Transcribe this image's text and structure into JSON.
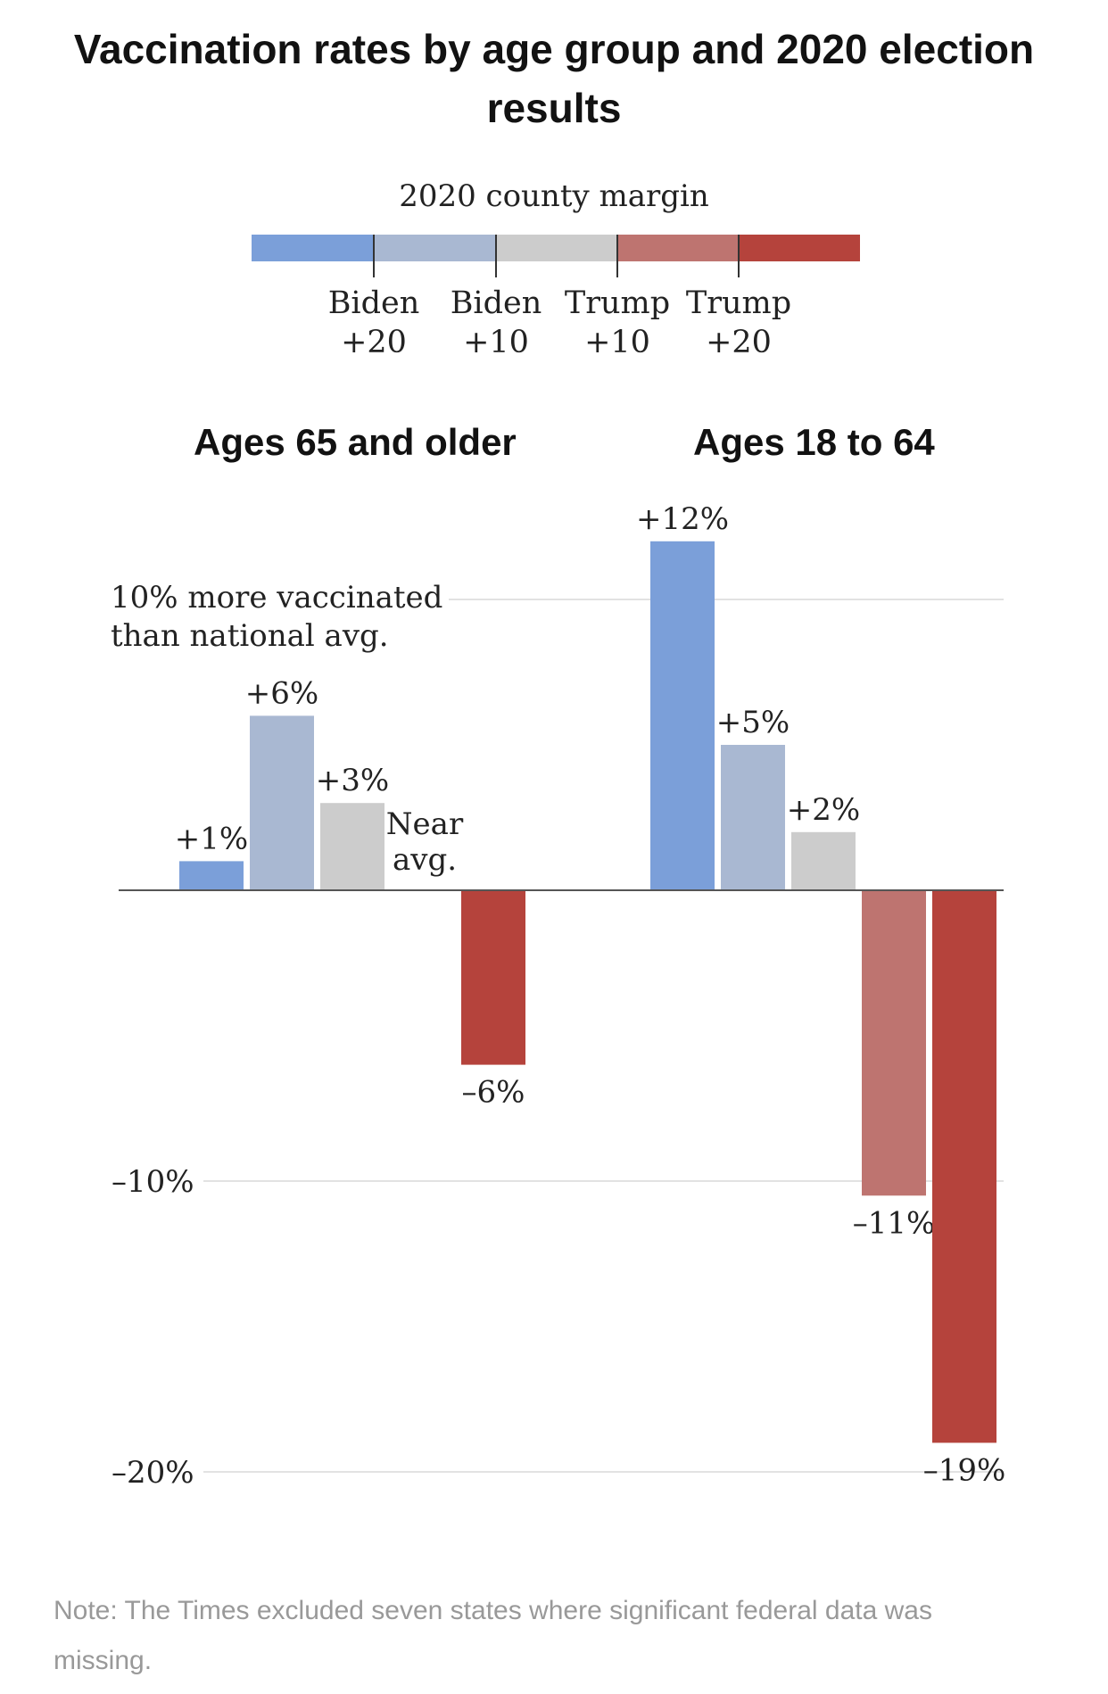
{
  "title": "Vaccination rates by age group and 2020 election results",
  "legend": {
    "title": "2020 county margin",
    "colors": [
      "#7b9fd9",
      "#a9b8d2",
      "#cccccc",
      "#be7470",
      "#b5433c"
    ],
    "ticks": [
      {
        "line1": "Biden",
        "line2": "+20"
      },
      {
        "line1": "Biden",
        "line2": "+10"
      },
      {
        "line1": "Trump",
        "line2": "+10"
      },
      {
        "line1": "Trump",
        "line2": "+20"
      }
    ]
  },
  "chart_data": [
    {
      "type": "bar",
      "title": "Ages 65 and older",
      "categories": [
        "Biden +20 or more",
        "Biden +10 to +20",
        "Biden +10 to Trump +10",
        "Trump +10 to +20",
        "Trump +20 or more"
      ],
      "values": [
        1,
        6,
        3,
        0,
        -6
      ],
      "labels": [
        "+1%",
        "+6%",
        "+3%",
        "Near avg.",
        "–6%"
      ],
      "colors": [
        "#7b9fd9",
        "#a9b8d2",
        "#cccccc",
        "#be7470",
        "#b5433c"
      ],
      "ylim": [
        -20,
        12
      ],
      "annotation": "10% more vaccinated than national avg."
    },
    {
      "type": "bar",
      "title": "Ages 18 to 64",
      "categories": [
        "Biden +20 or more",
        "Biden +10 to +20",
        "Biden +10 to Trump +10",
        "Trump +10 to +20",
        "Trump +20 or more"
      ],
      "values": [
        12,
        5,
        2,
        -10.5,
        -19
      ],
      "labels": [
        "+12%",
        "+5%",
        "+2%",
        "–11%",
        "–19%"
      ],
      "colors": [
        "#7b9fd9",
        "#a9b8d2",
        "#cccccc",
        "#be7470",
        "#b5433c"
      ],
      "ylim": [
        -20,
        12
      ]
    }
  ],
  "gridlines": [
    10,
    -10,
    -20
  ],
  "grid_labels": {
    "minus10": "–10%",
    "minus20": "–20%"
  },
  "note": "Note: The Times excluded seven states where significant federal data was missing."
}
